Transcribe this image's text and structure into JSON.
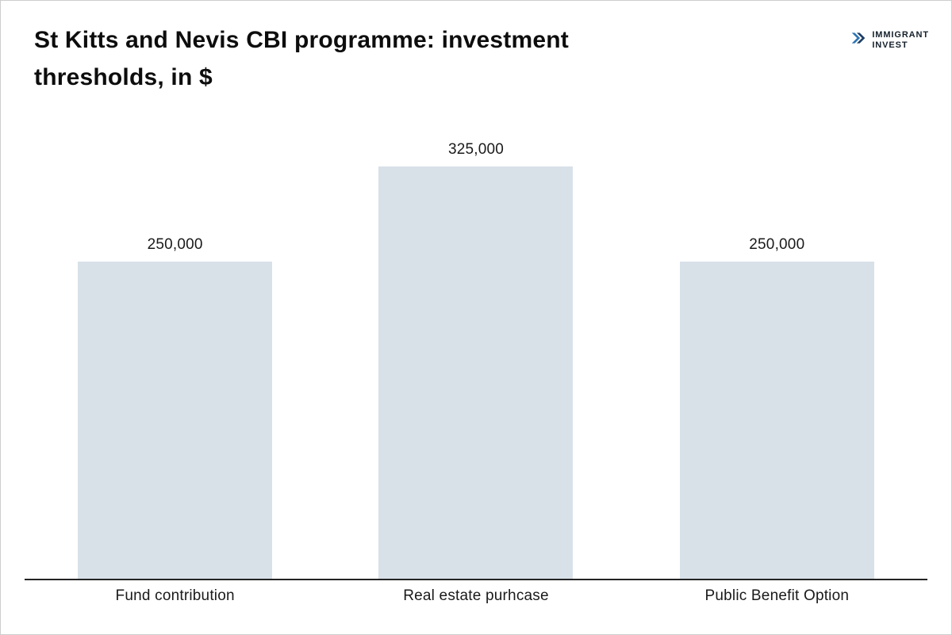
{
  "header": {
    "title_line1": "St Kitts and Nevis CBI programme: investment",
    "title_line2": "thresholds, in $",
    "logo": {
      "line1": "IMMIGRANT",
      "line2": "INVEST"
    }
  },
  "colors": {
    "bar": "#d8e1e8",
    "axis": "#242424",
    "logo_navy": "#1c3e66",
    "logo_accent": "#2f74b3",
    "title_text": "#0d0d0d"
  },
  "chart_data": {
    "type": "bar",
    "title": "St Kitts and Nevis CBI programme: investment thresholds, in $",
    "categories": [
      "Fund contribution",
      "Real estate purhcase",
      "Public Benefit Option"
    ],
    "values": [
      250000,
      325000,
      250000
    ],
    "value_labels": [
      "250,000",
      "325,000",
      "250,000"
    ],
    "xlabel": "",
    "ylabel": "",
    "ylim": [
      0,
      325000
    ],
    "grid": false,
    "legend": false,
    "bar_color": "#d8e1e8"
  }
}
